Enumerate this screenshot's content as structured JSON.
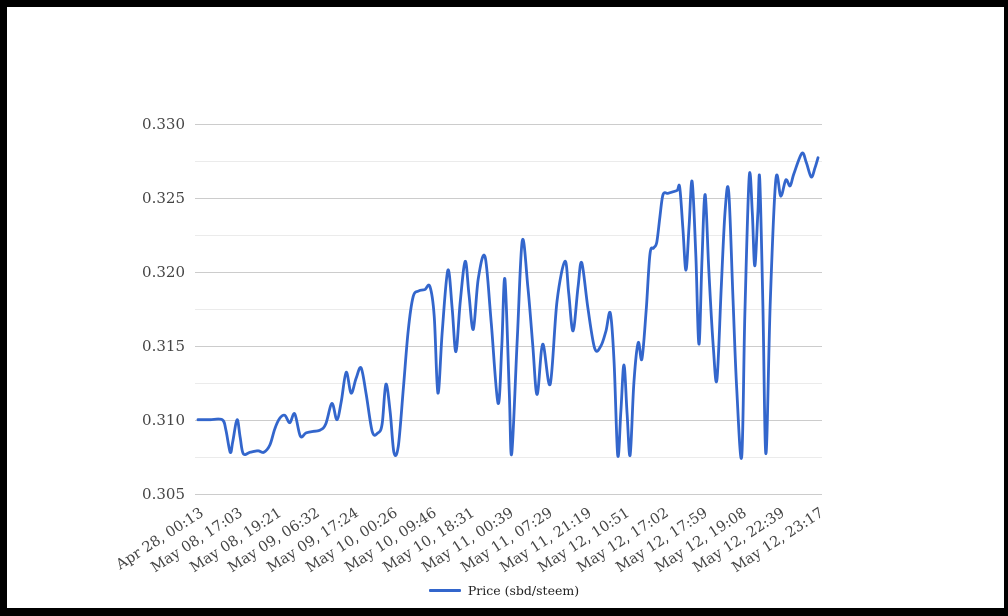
{
  "chart_data": {
    "type": "line",
    "title": "",
    "series_name": "Price (sbd/steem)",
    "line_color": "#3366cc",
    "grid": true,
    "legend_position": "bottom",
    "ylim": [
      0.305,
      0.33
    ],
    "y_tick_labels": [
      "0.330",
      "0.325",
      "0.320",
      "0.315",
      "0.310",
      "0.305"
    ],
    "y_tick_values": [
      0.33,
      0.325,
      0.32,
      0.315,
      0.31,
      0.305
    ],
    "minor_y_tick_values": [
      0.3275,
      0.325,
      0.3225,
      0.32,
      0.3175,
      0.315,
      0.3125,
      0.31,
      0.3075
    ],
    "x_tick_labels": [
      "Apr 28, 00:13",
      "May 08, 17:03",
      "May 08, 19:21",
      "May 09, 06:32",
      "May 09, 17:24",
      "May 10, 00:26",
      "May 10, 09:46",
      "May 10, 18:31",
      "May 11, 00:39",
      "May 11, 07:29",
      "May 11, 21:19",
      "May 12, 10:51",
      "May 12, 17:02",
      "May 12, 17:59",
      "May 12, 19:08",
      "May 12, 22:39",
      "May 12, 23:17"
    ],
    "points": [
      [
        0.0,
        0.31
      ],
      [
        0.019,
        0.31
      ],
      [
        0.039,
        0.31
      ],
      [
        0.045,
        0.3093
      ],
      [
        0.052,
        0.3078
      ],
      [
        0.056,
        0.3085
      ],
      [
        0.063,
        0.31
      ],
      [
        0.068,
        0.3088
      ],
      [
        0.073,
        0.3077
      ],
      [
        0.084,
        0.3078
      ],
      [
        0.097,
        0.3079
      ],
      [
        0.106,
        0.3078
      ],
      [
        0.116,
        0.3083
      ],
      [
        0.124,
        0.3094
      ],
      [
        0.132,
        0.3101
      ],
      [
        0.14,
        0.3103
      ],
      [
        0.148,
        0.3098
      ],
      [
        0.156,
        0.3104
      ],
      [
        0.165,
        0.3089
      ],
      [
        0.174,
        0.3091
      ],
      [
        0.185,
        0.3092
      ],
      [
        0.197,
        0.3093
      ],
      [
        0.206,
        0.3097
      ],
      [
        0.216,
        0.3111
      ],
      [
        0.224,
        0.31
      ],
      [
        0.231,
        0.3112
      ],
      [
        0.239,
        0.3132
      ],
      [
        0.247,
        0.3118
      ],
      [
        0.255,
        0.3128
      ],
      [
        0.263,
        0.3135
      ],
      [
        0.271,
        0.3118
      ],
      [
        0.281,
        0.3092
      ],
      [
        0.29,
        0.3091
      ],
      [
        0.297,
        0.3097
      ],
      [
        0.303,
        0.3124
      ],
      [
        0.31,
        0.3105
      ],
      [
        0.316,
        0.3078
      ],
      [
        0.323,
        0.3082
      ],
      [
        0.331,
        0.312
      ],
      [
        0.339,
        0.316
      ],
      [
        0.347,
        0.3183
      ],
      [
        0.356,
        0.3187
      ],
      [
        0.366,
        0.3188
      ],
      [
        0.374,
        0.319
      ],
      [
        0.381,
        0.317
      ],
      [
        0.387,
        0.3118
      ],
      [
        0.394,
        0.316
      ],
      [
        0.403,
        0.3201
      ],
      [
        0.41,
        0.3175
      ],
      [
        0.416,
        0.3146
      ],
      [
        0.423,
        0.318
      ],
      [
        0.431,
        0.3207
      ],
      [
        0.437,
        0.3185
      ],
      [
        0.444,
        0.3161
      ],
      [
        0.452,
        0.3195
      ],
      [
        0.463,
        0.321
      ],
      [
        0.473,
        0.3165
      ],
      [
        0.484,
        0.3111
      ],
      [
        0.49,
        0.315
      ],
      [
        0.495,
        0.3195
      ],
      [
        0.502,
        0.312
      ],
      [
        0.506,
        0.3077
      ],
      [
        0.515,
        0.3155
      ],
      [
        0.523,
        0.3221
      ],
      [
        0.532,
        0.319
      ],
      [
        0.54,
        0.315
      ],
      [
        0.547,
        0.3117
      ],
      [
        0.556,
        0.3151
      ],
      [
        0.568,
        0.3124
      ],
      [
        0.579,
        0.318
      ],
      [
        0.592,
        0.3207
      ],
      [
        0.598,
        0.3185
      ],
      [
        0.605,
        0.316
      ],
      [
        0.613,
        0.319
      ],
      [
        0.619,
        0.3206
      ],
      [
        0.629,
        0.3175
      ],
      [
        0.64,
        0.3148
      ],
      [
        0.65,
        0.315
      ],
      [
        0.658,
        0.316
      ],
      [
        0.665,
        0.3172
      ],
      [
        0.671,
        0.314
      ],
      [
        0.677,
        0.3076
      ],
      [
        0.682,
        0.3105
      ],
      [
        0.687,
        0.3137
      ],
      [
        0.692,
        0.3105
      ],
      [
        0.697,
        0.3076
      ],
      [
        0.703,
        0.3125
      ],
      [
        0.71,
        0.3152
      ],
      [
        0.716,
        0.3141
      ],
      [
        0.723,
        0.3175
      ],
      [
        0.729,
        0.3212
      ],
      [
        0.735,
        0.3216
      ],
      [
        0.74,
        0.322
      ],
      [
        0.745,
        0.3237
      ],
      [
        0.75,
        0.3252
      ],
      [
        0.758,
        0.3253
      ],
      [
        0.766,
        0.3254
      ],
      [
        0.773,
        0.3255
      ],
      [
        0.777,
        0.3257
      ],
      [
        0.782,
        0.323
      ],
      [
        0.787,
        0.3201
      ],
      [
        0.792,
        0.323
      ],
      [
        0.797,
        0.3261
      ],
      [
        0.803,
        0.321
      ],
      [
        0.808,
        0.3151
      ],
      [
        0.813,
        0.321
      ],
      [
        0.818,
        0.3252
      ],
      [
        0.824,
        0.32
      ],
      [
        0.831,
        0.315
      ],
      [
        0.837,
        0.3127
      ],
      [
        0.844,
        0.319
      ],
      [
        0.85,
        0.324
      ],
      [
        0.856,
        0.3254
      ],
      [
        0.863,
        0.318
      ],
      [
        0.869,
        0.312
      ],
      [
        0.877,
        0.3075
      ],
      [
        0.882,
        0.317
      ],
      [
        0.889,
        0.3264
      ],
      [
        0.894,
        0.324
      ],
      [
        0.898,
        0.3204
      ],
      [
        0.903,
        0.324
      ],
      [
        0.906,
        0.3263
      ],
      [
        0.911,
        0.318
      ],
      [
        0.916,
        0.3077
      ],
      [
        0.923,
        0.318
      ],
      [
        0.932,
        0.3262
      ],
      [
        0.94,
        0.3251
      ],
      [
        0.948,
        0.3262
      ],
      [
        0.955,
        0.3258
      ],
      [
        0.961,
        0.3266
      ],
      [
        0.974,
        0.328
      ],
      [
        0.981,
        0.3274
      ],
      [
        0.989,
        0.3264
      ],
      [
        0.995,
        0.327
      ],
      [
        1.0,
        0.3277
      ]
    ]
  },
  "colors": {
    "major_grid": "#cccccc",
    "minor_grid": "#ebebeb",
    "axis_text": "#444444",
    "legend_text": "#222222",
    "frame": "#000000",
    "background": "#ffffff"
  }
}
